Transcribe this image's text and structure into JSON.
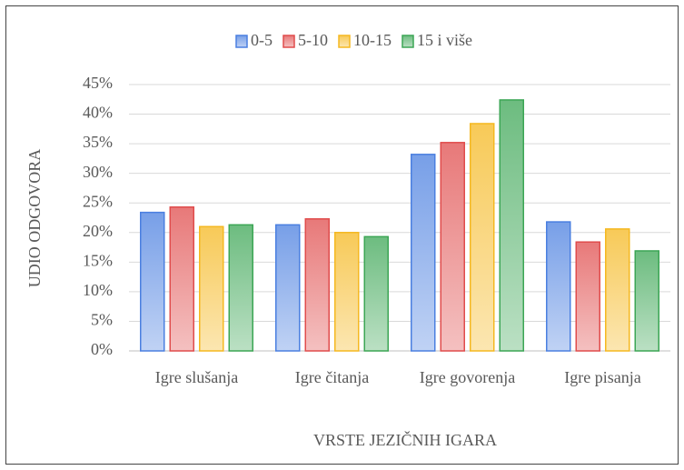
{
  "chart_data": {
    "type": "bar",
    "categories": [
      "Igre slušanja",
      "Igre čitanja",
      "Igre govorenja",
      "Igre pisanja"
    ],
    "series": [
      {
        "name": "0-5",
        "color": "#4a7fe0",
        "values": [
          23.4,
          21.3,
          33.2,
          21.8
        ]
      },
      {
        "name": "5-10",
        "color": "#e04c4c",
        "values": [
          24.3,
          22.3,
          35.2,
          18.4
        ]
      },
      {
        "name": "10-15",
        "color": "#f5b820",
        "values": [
          21.0,
          20.0,
          38.4,
          20.6
        ]
      },
      {
        "name": "15 i više",
        "color": "#3ca655",
        "values": [
          21.3,
          19.3,
          42.4,
          16.9
        ]
      }
    ],
    "x_label": "VRSTE JEZIČNIH IGARA",
    "y_label": "UDIO ODGOVORA",
    "ylim": [
      0,
      45
    ],
    "yticks": [
      {
        "value": 0,
        "label": "0%"
      },
      {
        "value": 5,
        "label": "5%"
      },
      {
        "value": 10,
        "label": "10%"
      },
      {
        "value": 15,
        "label": "15%"
      },
      {
        "value": 20,
        "label": "20%"
      },
      {
        "value": 25,
        "label": "25%"
      },
      {
        "value": 30,
        "label": "30%"
      },
      {
        "value": 35,
        "label": "35%"
      },
      {
        "value": 40,
        "label": "40%"
      },
      {
        "value": 45,
        "label": "45%"
      }
    ],
    "grid": true,
    "legend": "top"
  }
}
